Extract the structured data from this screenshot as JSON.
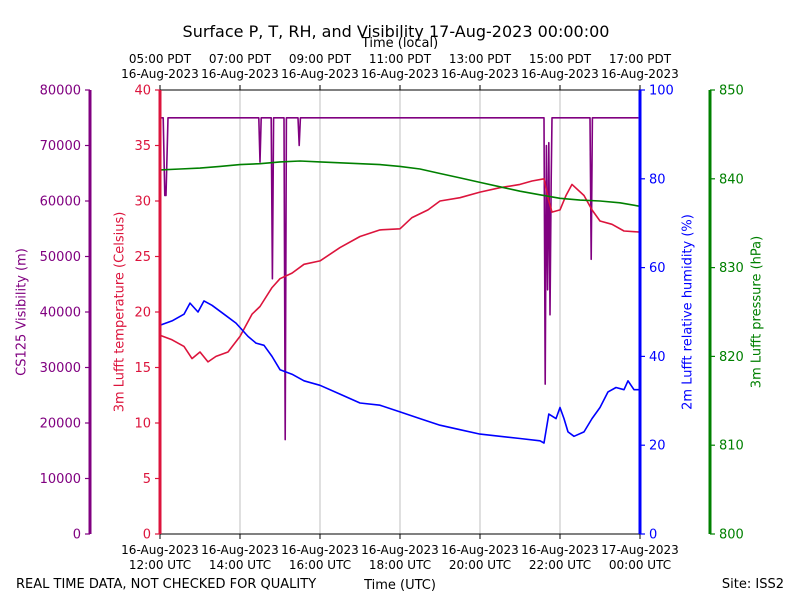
{
  "chart_data": {
    "type": "line",
    "title": "Surface P, T, RH, and Visibility 17-Aug-2023 00:00:00",
    "top_axis_label": "Time (local)",
    "bottom_axis_label": "Time (UTC)",
    "footer_left": "REAL TIME DATA, NOT CHECKED FOR QUALITY",
    "footer_right": "Site: ISS2",
    "x_range_hours_utc": [
      12,
      24
    ],
    "top_ticks": [
      {
        "h": 12,
        "line1": "05:00 PDT",
        "line2": "16-Aug-2023"
      },
      {
        "h": 14,
        "line1": "07:00 PDT",
        "line2": "16-Aug-2023"
      },
      {
        "h": 16,
        "line1": "09:00 PDT",
        "line2": "16-Aug-2023"
      },
      {
        "h": 18,
        "line1": "11:00 PDT",
        "line2": "16-Aug-2023"
      },
      {
        "h": 20,
        "line1": "13:00 PDT",
        "line2": "16-Aug-2023"
      },
      {
        "h": 22,
        "line1": "15:00 PDT",
        "line2": "16-Aug-2023"
      },
      {
        "h": 24,
        "line1": "17:00 PDT",
        "line2": "16-Aug-2023"
      }
    ],
    "bottom_ticks": [
      {
        "h": 12,
        "line1": "16-Aug-2023",
        "line2": "12:00 UTC"
      },
      {
        "h": 14,
        "line1": "16-Aug-2023",
        "line2": "14:00 UTC"
      },
      {
        "h": 16,
        "line1": "16-Aug-2023",
        "line2": "16:00 UTC"
      },
      {
        "h": 18,
        "line1": "16-Aug-2023",
        "line2": "18:00 UTC"
      },
      {
        "h": 20,
        "line1": "16-Aug-2023",
        "line2": "20:00 UTC"
      },
      {
        "h": 22,
        "line1": "16-Aug-2023",
        "line2": "22:00 UTC"
      },
      {
        "h": 24,
        "line1": "17-Aug-2023",
        "line2": "00:00 UTC"
      }
    ],
    "grid_vertical": true,
    "series": [
      {
        "name": "visibility",
        "label": "CS125 Visibility (m)",
        "color": "#800080",
        "ylim": [
          0,
          80000
        ],
        "ticks": [
          "0",
          "10000",
          "20000",
          "30000",
          "40000",
          "50000",
          "60000",
          "70000",
          "80000"
        ],
        "points": [
          [
            12.0,
            75000
          ],
          [
            12.08,
            75000
          ],
          [
            12.12,
            61000
          ],
          [
            12.15,
            61000
          ],
          [
            12.2,
            75000
          ],
          [
            14.47,
            75000
          ],
          [
            14.5,
            67000
          ],
          [
            14.53,
            75000
          ],
          [
            14.78,
            75000
          ],
          [
            14.81,
            46000
          ],
          [
            14.84,
            75000
          ],
          [
            15.1,
            75000
          ],
          [
            15.13,
            17000
          ],
          [
            15.16,
            75000
          ],
          [
            15.45,
            75000
          ],
          [
            15.48,
            70000
          ],
          [
            15.51,
            75000
          ],
          [
            21.6,
            75000
          ],
          [
            21.63,
            27000
          ],
          [
            21.66,
            70000
          ],
          [
            21.69,
            44000
          ],
          [
            21.72,
            70500
          ],
          [
            21.75,
            39500
          ],
          [
            21.78,
            64000
          ],
          [
            21.8,
            75000
          ],
          [
            22.75,
            75000
          ],
          [
            22.78,
            49500
          ],
          [
            22.81,
            75000
          ],
          [
            23.96,
            75000
          ]
        ]
      },
      {
        "name": "temperature",
        "label": "3m Lufft temperature (Celsius)",
        "color": "#dc143c",
        "ylim": [
          0,
          40
        ],
        "ticks": [
          "0",
          "5",
          "10",
          "15",
          "20",
          "25",
          "30",
          "35",
          "40"
        ],
        "points": [
          [
            12.0,
            17.9
          ],
          [
            12.3,
            17.5
          ],
          [
            12.6,
            16.9
          ],
          [
            12.8,
            15.8
          ],
          [
            13.0,
            16.4
          ],
          [
            13.2,
            15.5
          ],
          [
            13.4,
            16.0
          ],
          [
            13.7,
            16.4
          ],
          [
            14.0,
            17.8
          ],
          [
            14.3,
            19.8
          ],
          [
            14.5,
            20.5
          ],
          [
            14.8,
            22.2
          ],
          [
            15.0,
            23.0
          ],
          [
            15.3,
            23.5
          ],
          [
            15.6,
            24.3
          ],
          [
            16.0,
            24.6
          ],
          [
            16.5,
            25.8
          ],
          [
            17.0,
            26.8
          ],
          [
            17.5,
            27.4
          ],
          [
            18.0,
            27.5
          ],
          [
            18.3,
            28.5
          ],
          [
            18.7,
            29.2
          ],
          [
            19.0,
            30.0
          ],
          [
            19.5,
            30.3
          ],
          [
            20.0,
            30.8
          ],
          [
            20.5,
            31.2
          ],
          [
            21.0,
            31.5
          ],
          [
            21.3,
            31.8
          ],
          [
            21.6,
            32.0
          ],
          [
            21.72,
            30.0
          ],
          [
            21.8,
            29.0
          ],
          [
            22.0,
            29.2
          ],
          [
            22.15,
            30.5
          ],
          [
            22.3,
            31.5
          ],
          [
            22.6,
            30.5
          ],
          [
            22.8,
            29.2
          ],
          [
            23.0,
            28.2
          ],
          [
            23.3,
            27.9
          ],
          [
            23.6,
            27.3
          ],
          [
            24.0,
            27.2
          ]
        ]
      },
      {
        "name": "humidity",
        "label": "2m Lufft relative humidity (%)",
        "color": "#0000ff",
        "ylim": [
          0,
          100
        ],
        "ticks": [
          "0",
          "20",
          "40",
          "60",
          "80",
          "100"
        ],
        "points": [
          [
            12.0,
            47
          ],
          [
            12.3,
            48
          ],
          [
            12.6,
            49.5
          ],
          [
            12.75,
            52
          ],
          [
            12.95,
            50
          ],
          [
            13.1,
            52.5
          ],
          [
            13.3,
            51.5
          ],
          [
            13.6,
            49.5
          ],
          [
            13.9,
            47.5
          ],
          [
            14.2,
            44.5
          ],
          [
            14.4,
            43
          ],
          [
            14.6,
            42.5
          ],
          [
            14.8,
            40
          ],
          [
            15.0,
            37
          ],
          [
            15.3,
            36
          ],
          [
            15.6,
            34.5
          ],
          [
            16.0,
            33.5
          ],
          [
            16.5,
            31.5
          ],
          [
            17.0,
            29.5
          ],
          [
            17.5,
            29
          ],
          [
            18.0,
            27.5
          ],
          [
            18.5,
            26
          ],
          [
            19.0,
            24.5
          ],
          [
            19.5,
            23.5
          ],
          [
            20.0,
            22.5
          ],
          [
            20.5,
            22
          ],
          [
            21.0,
            21.5
          ],
          [
            21.5,
            21
          ],
          [
            21.6,
            20.5
          ],
          [
            21.72,
            27
          ],
          [
            21.9,
            26
          ],
          [
            22.0,
            28.5
          ],
          [
            22.1,
            26
          ],
          [
            22.2,
            23
          ],
          [
            22.35,
            22
          ],
          [
            22.6,
            23
          ],
          [
            22.8,
            26
          ],
          [
            23.0,
            28.5
          ],
          [
            23.2,
            32
          ],
          [
            23.4,
            33
          ],
          [
            23.6,
            32.5
          ],
          [
            23.7,
            34.5
          ],
          [
            23.85,
            32.5
          ],
          [
            24.0,
            32.5
          ]
        ]
      },
      {
        "name": "pressure",
        "label": "3m Lufft pressure (hPa)",
        "color": "#008000",
        "ylim": [
          800,
          850
        ],
        "ticks": [
          "800",
          "810",
          "820",
          "830",
          "840",
          "850"
        ],
        "points": [
          [
            12.0,
            841.0
          ],
          [
            12.5,
            841.1
          ],
          [
            13.0,
            841.2
          ],
          [
            13.5,
            841.4
          ],
          [
            14.0,
            841.6
          ],
          [
            14.5,
            841.7
          ],
          [
            15.0,
            841.9
          ],
          [
            15.5,
            842.0
          ],
          [
            16.0,
            841.9
          ],
          [
            16.5,
            841.8
          ],
          [
            17.0,
            841.7
          ],
          [
            17.5,
            841.6
          ],
          [
            18.0,
            841.4
          ],
          [
            18.5,
            841.1
          ],
          [
            19.0,
            840.6
          ],
          [
            19.5,
            840.1
          ],
          [
            20.0,
            839.6
          ],
          [
            20.5,
            839.1
          ],
          [
            21.0,
            838.6
          ],
          [
            21.5,
            838.2
          ],
          [
            22.0,
            837.8
          ],
          [
            22.5,
            837.6
          ],
          [
            23.0,
            837.5
          ],
          [
            23.5,
            837.3
          ],
          [
            24.0,
            836.9
          ]
        ]
      }
    ]
  }
}
